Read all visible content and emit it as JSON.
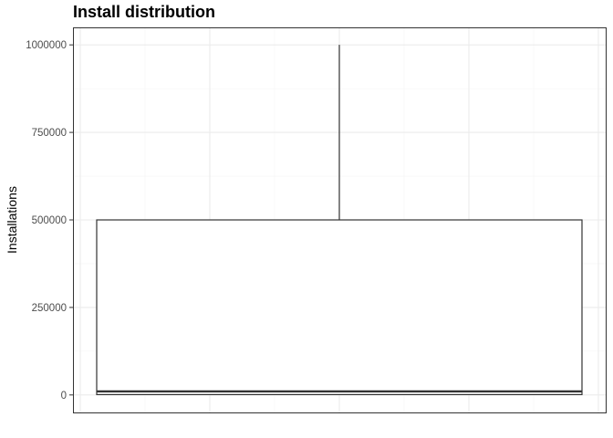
{
  "chart_data": {
    "type": "boxplot",
    "title": "Install distribution",
    "xlabel": "",
    "ylabel": "Installations",
    "ylim": [
      -50000,
      1050000
    ],
    "y_ticks": [
      0,
      250000,
      500000,
      750000,
      1000000
    ],
    "y_tick_labels": [
      "0",
      "250000",
      "500000",
      "750000",
      "1000000"
    ],
    "grid": true,
    "box": {
      "min": 0,
      "q1": 1000,
      "median": 10000,
      "q3": 500000,
      "max": 1000000
    },
    "colors": {
      "box_stroke": "#333333",
      "panel_border": "#333333",
      "grid_major": "#ebebeb",
      "grid_minor": "#f5f5f5"
    }
  }
}
